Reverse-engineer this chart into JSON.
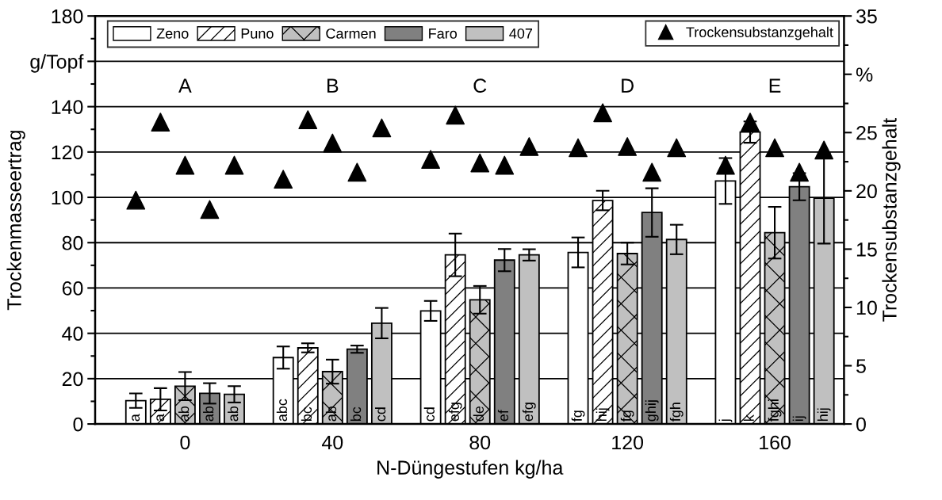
{
  "chart_data": {
    "type": "bar",
    "categories": [
      "0",
      "40",
      "80",
      "120",
      "160"
    ],
    "xlabel": "N-Düngestufen kg/ha",
    "ylabel": "Trockenmasseertrag",
    "y2label": "Trockensubstanzgehalt",
    "ylim": [
      0,
      180
    ],
    "yticks": [
      0,
      20,
      40,
      60,
      80,
      100,
      120,
      140,
      {
        "value": 160,
        "label": "g/Topf"
      },
      180
    ],
    "y2lim": [
      0,
      35
    ],
    "y2ticks": [
      0,
      5,
      10,
      15,
      20,
      25,
      {
        "value": 30,
        "label": "%"
      },
      35
    ],
    "grid": "y",
    "legend": "top",
    "annotations": [
      "A",
      "B",
      "C",
      "D",
      "E"
    ],
    "series": [
      {
        "name": "Zeno",
        "color": "#ffffff",
        "values": [
          10.3,
          29.3,
          49.9,
          75.7,
          107.2
        ],
        "errors": [
          3.2,
          4.9,
          4.4,
          6.6,
          10.1
        ],
        "value_labels": [
          "a",
          "abc",
          "cd",
          "fg",
          "j"
        ]
      },
      {
        "name": "Puno",
        "color": "#ffffff",
        "values": [
          10.9,
          33.6,
          74.6,
          98.6,
          128.8
        ],
        "errors": [
          4.9,
          2,
          9.4,
          4.3,
          4.7
        ],
        "value_labels": [
          "a",
          "bc",
          "efg",
          "hij",
          "k"
        ]
      },
      {
        "name": "Carmen",
        "color": "#c0c0c0",
        "values": [
          16.7,
          23.1,
          54.8,
          75.2,
          84.4
        ],
        "errors": [
          6.2,
          5.3,
          6.1,
          4.8,
          11.4
        ],
        "value_labels": [
          "ab",
          "ab",
          "de",
          "fg",
          "fghi"
        ]
      },
      {
        "name": "Faro",
        "color": "#808080",
        "values": [
          13.5,
          33.0,
          72.3,
          93.3,
          104.7
        ],
        "errors": [
          4.5,
          1.6,
          4.9,
          10.7,
          6
        ],
        "value_labels": [
          "ab",
          "bc",
          "ef",
          "ghij",
          "ij"
        ]
      },
      {
        "name": "407",
        "color": "#c0c0c0",
        "values": [
          13.1,
          44.5,
          74.6,
          81.4,
          99.6
        ],
        "errors": [
          3.6,
          6.7,
          2.5,
          6.5,
          20
        ],
        "value_labels": [
          "ab",
          "cd",
          "efg",
          "fgh",
          "hij"
        ]
      },
      {
        "name": "Trockensubstanzgehalt",
        "type": "scatter",
        "axis": "y2",
        "color": "#000000",
        "marker": "triangle",
        "x": [
          "0",
          "0",
          "0",
          "0",
          "0",
          "40",
          "40",
          "40",
          "40",
          "40",
          "80",
          "80",
          "80",
          "80",
          "80",
          "120",
          "120",
          "120",
          "120",
          "120",
          "160",
          "160",
          "160",
          "160",
          "160"
        ],
        "values": [
          19.2,
          25.9,
          22.2,
          18.4,
          22.2,
          21.0,
          26.1,
          24.1,
          21.6,
          25.4,
          22.7,
          26.5,
          22.4,
          22.2,
          23.8,
          23.7,
          26.7,
          23.8,
          21.6,
          23.7,
          22.2,
          25.9,
          23.7,
          21.6,
          23.5
        ]
      }
    ]
  }
}
